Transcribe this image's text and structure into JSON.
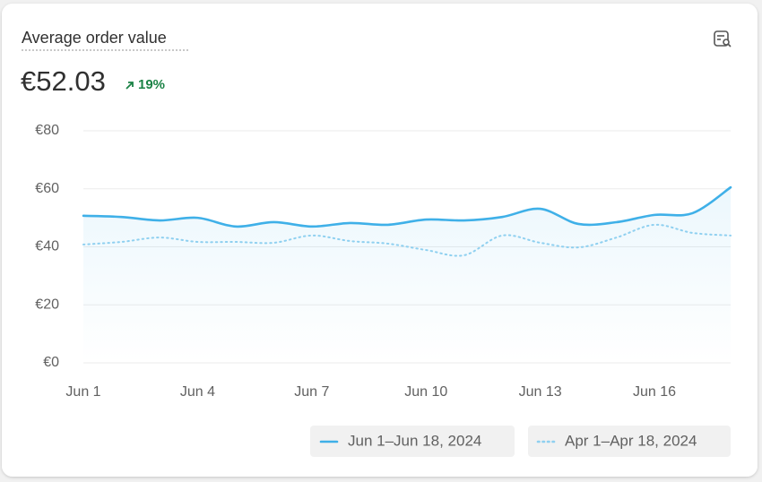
{
  "chart_data": {
    "type": "line",
    "title": "Average order value",
    "headline": "€52.03",
    "change": "19%",
    "categories": [
      "Jun 1",
      null,
      null,
      "Jun 4",
      null,
      null,
      "Jun 7",
      null,
      null,
      "Jun 10",
      null,
      null,
      "Jun 13",
      null,
      null,
      "Jun 16",
      null,
      null
    ],
    "series": [
      {
        "name": "Jun 1–Jun 18, 2024",
        "color": "#3fb0e8",
        "style": "solid",
        "values": [
          50.7,
          50.3,
          49.1,
          50.0,
          47.0,
          48.5,
          47.0,
          48.2,
          47.6,
          49.4,
          49.1,
          50.3,
          53.1,
          47.9,
          48.5,
          51.0,
          51.6,
          60.5
        ]
      },
      {
        "name": "Apr 1–Apr 18, 2024",
        "color": "#8fd0f0",
        "style": "dotted",
        "values": [
          40.8,
          41.7,
          43.2,
          41.7,
          41.7,
          41.4,
          43.9,
          42.0,
          41.1,
          38.9,
          37.1,
          43.9,
          41.4,
          39.8,
          43.2,
          47.6,
          44.8,
          43.9
        ]
      }
    ],
    "ylim": [
      0,
      80
    ],
    "yticks": [
      {
        "value": 0,
        "label": "€0"
      },
      {
        "value": 20,
        "label": "€20"
      },
      {
        "value": 40,
        "label": "€40"
      },
      {
        "value": 60,
        "label": "€60"
      },
      {
        "value": 80,
        "label": "€80"
      }
    ],
    "grid": true
  }
}
